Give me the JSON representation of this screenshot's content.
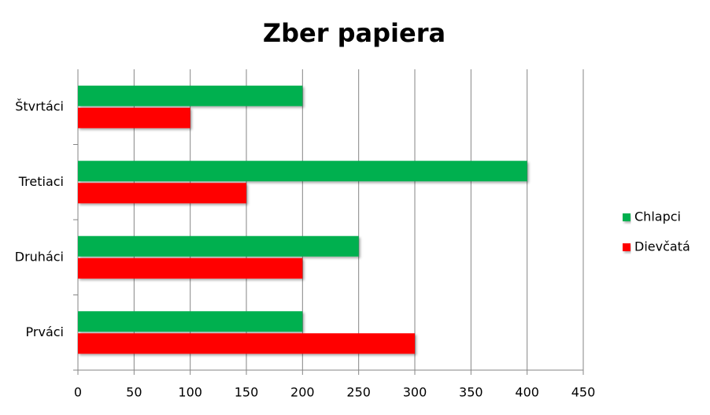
{
  "chart_data": {
    "type": "bar",
    "orientation": "horizontal",
    "title": "Zber papiera",
    "categories": [
      "Prváci",
      "Druháci",
      "Tretiaci",
      "Štvrtáci"
    ],
    "series": [
      {
        "name": "Chlapci",
        "color": "#00b050",
        "values": [
          200,
          250,
          400,
          200
        ]
      },
      {
        "name": "Dievčatá",
        "color": "#ff0000",
        "values": [
          300,
          200,
          150,
          100
        ]
      }
    ],
    "xlim": [
      0,
      450
    ],
    "xticks": [
      0,
      50,
      100,
      150,
      200,
      250,
      300,
      350,
      400,
      450
    ],
    "grid": true,
    "legend": "right"
  }
}
